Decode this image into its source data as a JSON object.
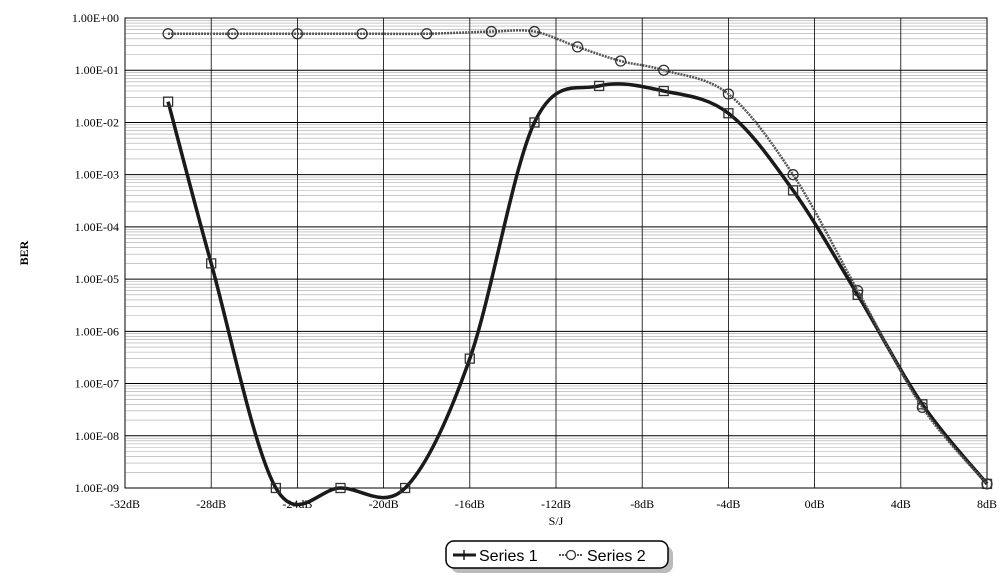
{
  "chart_data": {
    "type": "line",
    "title": "",
    "xlabel": "S/J",
    "ylabel": "BER",
    "y_scale": "log",
    "grid": true,
    "legend_position": "bottom-center",
    "x_ticks": [
      "-32dB",
      "-28dB",
      "-24dB",
      "-20dB",
      "-16dB",
      "-12dB",
      "-8dB",
      "-4dB",
      "0dB",
      "4dB",
      "8dB"
    ],
    "y_ticks": [
      "1.00E-09",
      "1.00E-08",
      "1.00E-07",
      "1.00E-06",
      "1.00E-05",
      "1.00E-04",
      "1.00E-03",
      "1.00E-02",
      "1.00E-01",
      "1.00E+00"
    ],
    "xlim": [
      -32,
      8
    ],
    "ylim": [
      1e-09,
      1
    ],
    "series": [
      {
        "name": "Series 1",
        "color": "#1a1a1a",
        "marker": "square",
        "x": [
          -30,
          -28,
          -25,
          -22,
          -19,
          -16,
          -13,
          -10,
          -7,
          -4,
          -1,
          2,
          5,
          8
        ],
        "y": [
          0.025,
          2e-05,
          1e-09,
          1e-09,
          1e-09,
          3e-07,
          0.01,
          0.05,
          0.04,
          0.015,
          0.0005,
          5e-06,
          4e-08,
          1.2e-09
        ]
      },
      {
        "name": "Series 2",
        "color": "#555555",
        "marker": "circle",
        "x": [
          -30,
          -27,
          -24,
          -21,
          -18,
          -15,
          -13,
          -11,
          -9,
          -7,
          -4,
          -1,
          2,
          5,
          8
        ],
        "y": [
          0.5,
          0.5,
          0.5,
          0.5,
          0.5,
          0.55,
          0.55,
          0.28,
          0.15,
          0.1,
          0.035,
          0.001,
          6e-06,
          3.5e-08,
          1.2e-09
        ]
      }
    ]
  }
}
